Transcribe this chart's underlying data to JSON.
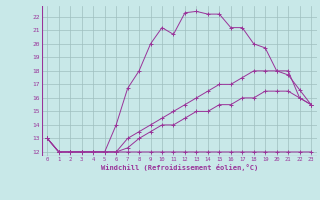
{
  "xlabel": "Windchill (Refroidissement éolien,°C)",
  "background_color": "#c8e8e8",
  "grid_color": "#9fbfbf",
  "line_color": "#993399",
  "xlim": [
    -0.5,
    23.5
  ],
  "ylim": [
    11.7,
    22.8
  ],
  "xticks": [
    0,
    1,
    2,
    3,
    4,
    5,
    6,
    7,
    8,
    9,
    10,
    11,
    12,
    13,
    14,
    15,
    16,
    17,
    18,
    19,
    20,
    21,
    22,
    23
  ],
  "yticks": [
    12,
    13,
    14,
    15,
    16,
    17,
    18,
    19,
    20,
    21,
    22
  ],
  "line1_x": [
    0,
    1,
    2,
    3,
    4,
    5,
    6,
    7,
    8,
    9,
    10,
    11,
    12,
    13,
    14,
    15,
    16,
    17,
    18,
    19,
    20,
    21,
    22,
    23
  ],
  "line1_y": [
    13,
    12,
    12,
    12,
    12,
    12,
    12,
    12,
    12,
    12,
    12,
    12,
    12,
    12,
    12,
    12,
    12,
    12,
    12,
    12,
    12,
    12,
    12,
    12
  ],
  "line2_x": [
    0,
    1,
    2,
    3,
    4,
    5,
    6,
    7,
    8,
    9,
    10,
    11,
    12,
    13,
    14,
    15,
    16,
    17,
    18,
    19,
    20,
    21,
    22,
    23
  ],
  "line2_y": [
    13,
    12,
    12,
    12,
    12,
    12,
    14,
    16.7,
    18,
    20,
    21.2,
    20.7,
    22.3,
    22.4,
    22.2,
    22.2,
    21.2,
    21.2,
    20,
    19.7,
    18,
    17.7,
    16.6,
    15.5
  ],
  "line3_x": [
    0,
    1,
    2,
    3,
    4,
    5,
    6,
    7,
    8,
    9,
    10,
    11,
    12,
    13,
    14,
    15,
    16,
    17,
    18,
    19,
    20,
    21,
    22,
    23
  ],
  "line3_y": [
    13,
    12,
    12,
    12,
    12,
    12,
    12,
    13,
    13.5,
    14,
    14.5,
    15,
    15.5,
    16,
    16.5,
    17,
    17,
    17.5,
    18,
    18,
    18,
    18,
    16,
    15.5
  ],
  "line4_x": [
    0,
    1,
    2,
    3,
    4,
    5,
    6,
    7,
    8,
    9,
    10,
    11,
    12,
    13,
    14,
    15,
    16,
    17,
    18,
    19,
    20,
    21,
    22,
    23
  ],
  "line4_y": [
    13,
    12,
    12,
    12,
    12,
    12,
    12,
    12.3,
    13,
    13.5,
    14,
    14,
    14.5,
    15,
    15,
    15.5,
    15.5,
    16,
    16,
    16.5,
    16.5,
    16.5,
    16,
    15.5
  ]
}
